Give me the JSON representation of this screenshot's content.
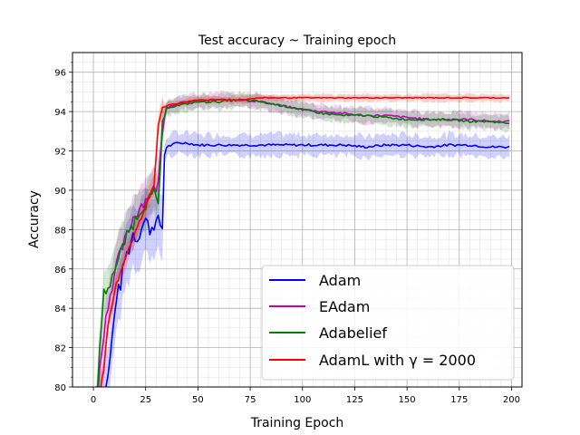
{
  "chart_data": {
    "type": "line",
    "title": "Test accuracy ~ Training epoch",
    "xlabel": "Training Epoch",
    "ylabel": "Accuracy",
    "xlim": [
      -10,
      205
    ],
    "ylim": [
      80,
      97
    ],
    "xticks": [
      0,
      25,
      50,
      75,
      100,
      125,
      150,
      175,
      200
    ],
    "yticks": [
      80,
      82,
      84,
      86,
      88,
      90,
      92,
      94,
      96
    ],
    "grid": true,
    "legend_position": "lower-right",
    "series": [
      {
        "name": "Adam",
        "color": "#0000ff",
        "x": [
          1,
          3,
          5,
          7,
          9,
          11,
          13,
          15,
          17,
          19,
          21,
          23,
          25,
          27,
          29,
          31,
          33,
          34,
          35,
          40,
          45,
          50,
          60,
          70,
          80,
          90,
          100,
          110,
          120,
          130,
          140,
          150,
          160,
          170,
          180,
          190,
          199
        ],
        "y": [
          78.5,
          79.2,
          79.8,
          80.5,
          82.5,
          84.6,
          85.2,
          86.5,
          87.0,
          87.8,
          87.5,
          88.2,
          88.5,
          88.0,
          88.3,
          88.4,
          88.1,
          91.8,
          92.2,
          92.4,
          92.4,
          92.3,
          92.3,
          92.3,
          92.3,
          92.3,
          92.3,
          92.3,
          92.3,
          92.2,
          92.3,
          92.3,
          92.2,
          92.3,
          92.3,
          92.2,
          92.2
        ]
      },
      {
        "name": "EAdam",
        "color": "#bf00bf",
        "x": [
          1,
          3,
          5,
          7,
          9,
          11,
          13,
          15,
          17,
          19,
          21,
          23,
          25,
          27,
          29,
          31,
          33,
          35,
          40,
          45,
          50,
          60,
          70,
          80,
          90,
          100,
          110,
          120,
          130,
          140,
          150,
          160,
          170,
          180,
          190,
          199
        ],
        "y": [
          78.5,
          80.8,
          82.8,
          84.2,
          85.2,
          86.2,
          86.8,
          87.4,
          88.0,
          88.6,
          88.9,
          89.3,
          89.5,
          89.8,
          90.0,
          90.3,
          93.2,
          94.2,
          94.4,
          94.5,
          94.5,
          94.6,
          94.6,
          94.5,
          94.3,
          94.1,
          94.0,
          93.9,
          93.8,
          93.8,
          93.7,
          93.6,
          93.6,
          93.6,
          93.5,
          93.5
        ]
      },
      {
        "name": "Adabelief",
        "color": "#008000",
        "x": [
          1,
          3,
          5,
          7,
          9,
          11,
          13,
          15,
          17,
          19,
          21,
          23,
          25,
          27,
          29,
          31,
          33,
          35,
          40,
          45,
          50,
          60,
          70,
          80,
          90,
          100,
          110,
          120,
          130,
          140,
          150,
          160,
          170,
          180,
          190,
          199
        ],
        "y": [
          78.5,
          81.8,
          85.0,
          84.8,
          85.8,
          86.2,
          86.8,
          87.4,
          87.9,
          88.3,
          88.7,
          89.1,
          89.3,
          89.6,
          89.8,
          89.3,
          93.2,
          94.2,
          94.3,
          94.4,
          94.5,
          94.5,
          94.6,
          94.5,
          94.3,
          94.1,
          93.9,
          93.8,
          93.8,
          93.7,
          93.6,
          93.6,
          93.6,
          93.5,
          93.5,
          93.4
        ]
      },
      {
        "name": "AdamL with γ = 2000",
        "color": "#ff0000",
        "x": [
          1,
          3,
          5,
          7,
          9,
          11,
          13,
          15,
          17,
          19,
          21,
          23,
          25,
          27,
          29,
          31,
          33,
          35,
          40,
          45,
          50,
          60,
          70,
          80,
          90,
          100,
          110,
          120,
          130,
          140,
          150,
          160,
          170,
          180,
          190,
          199
        ],
        "y": [
          78.5,
          79.5,
          81.0,
          83.0,
          84.2,
          85.2,
          85.9,
          86.5,
          87.1,
          87.6,
          88.1,
          88.6,
          89.2,
          89.8,
          90.3,
          93.4,
          94.2,
          94.3,
          94.4,
          94.5,
          94.6,
          94.6,
          94.6,
          94.7,
          94.7,
          94.7,
          94.7,
          94.7,
          94.7,
          94.7,
          94.7,
          94.7,
          94.7,
          94.7,
          94.7,
          94.7
        ]
      }
    ]
  },
  "legend": {
    "items": [
      "Adam",
      "EAdam",
      "Adabelief",
      "AdamL with γ = 2000"
    ]
  }
}
